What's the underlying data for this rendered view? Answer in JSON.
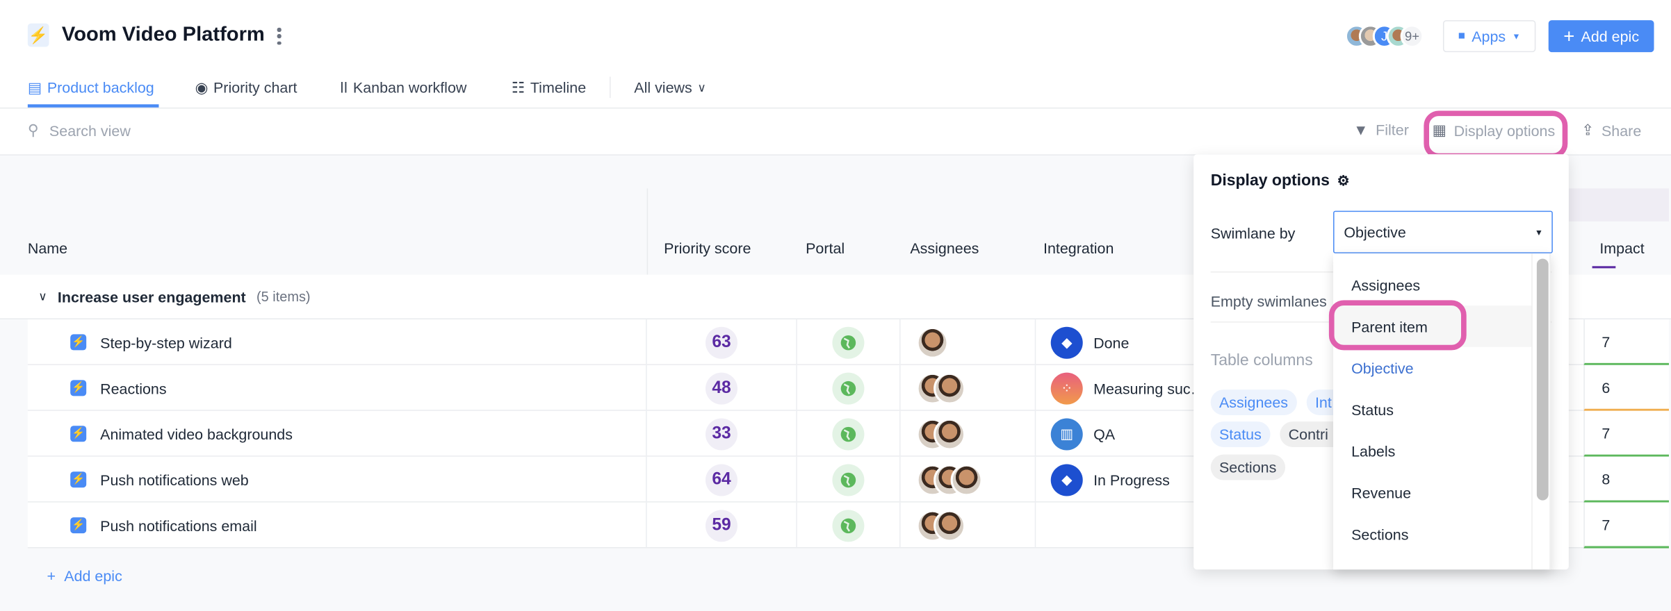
{
  "header": {
    "title": "Voom Video Platform",
    "logo_icon": "bolt-icon",
    "more_icon": "kebab-icon",
    "avatars_more": "9+",
    "avatar_initial": "J",
    "apps_label": "Apps",
    "add_epic_label": "Add epic"
  },
  "tabs": [
    {
      "label": "Product backlog",
      "icon": "list-icon",
      "active": true
    },
    {
      "label": "Priority chart",
      "icon": "target-icon"
    },
    {
      "label": "Kanban workflow",
      "icon": "kanban-icon"
    },
    {
      "label": "Timeline",
      "icon": "timeline-icon"
    },
    {
      "label": "All views",
      "icon": "chevron-down-icon"
    }
  ],
  "toolbar": {
    "search_placeholder": "Search view",
    "filter": "Filter",
    "display_options": "Display options",
    "share": "Share"
  },
  "table": {
    "columns": [
      "Name",
      "Priority score",
      "Portal",
      "Assignees",
      "Integration",
      "Impact"
    ],
    "group": {
      "title": "Increase user engagement",
      "count": "(5 items)"
    },
    "rows": [
      {
        "name": "Step-by-step wizard",
        "score": "63",
        "assignees": 1,
        "integration": "Done",
        "integration_icon": "jira-icon",
        "impact": "7",
        "impact_color": "#5cb85c"
      },
      {
        "name": "Reactions",
        "score": "48",
        "assignees": 2,
        "integration": "Measuring suc…",
        "integration_icon": "asana-icon",
        "impact": "6",
        "impact_color": "#f0ad4e"
      },
      {
        "name": "Animated video backgrounds",
        "score": "33",
        "assignees": 2,
        "integration": "QA",
        "integration_icon": "trello-icon",
        "impact": "7",
        "impact_color": "#5cb85c"
      },
      {
        "name": "Push notifications web",
        "score": "64",
        "assignees": 3,
        "integration": "In Progress",
        "integration_icon": "jira-icon",
        "impact": "8",
        "impact_color": "#5cb85c"
      },
      {
        "name": "Push notifications email",
        "score": "59",
        "assignees": 2,
        "integration": "",
        "integration_icon": "",
        "impact": "7",
        "impact_color": "#5cb85c"
      }
    ],
    "add_epic": "Add epic"
  },
  "display_options": {
    "title": "Display options",
    "swimlane_label": "Swimlane by",
    "swimlane_value": "Objective",
    "empty_swimlanes": "Empty swimlanes",
    "table_columns": "Table columns",
    "chips": [
      "Assignees",
      "Int",
      "Status",
      "Contri",
      "Sections"
    ],
    "options": [
      "Assignees",
      "Parent item",
      "Objective",
      "Status",
      "Labels",
      "Revenue",
      "Sections"
    ],
    "selected": "Objective",
    "hovered": "Parent item"
  },
  "colors": {
    "accent": "#4a8bf5",
    "highlight": "#e05fae",
    "score": "#5b2aa3"
  }
}
